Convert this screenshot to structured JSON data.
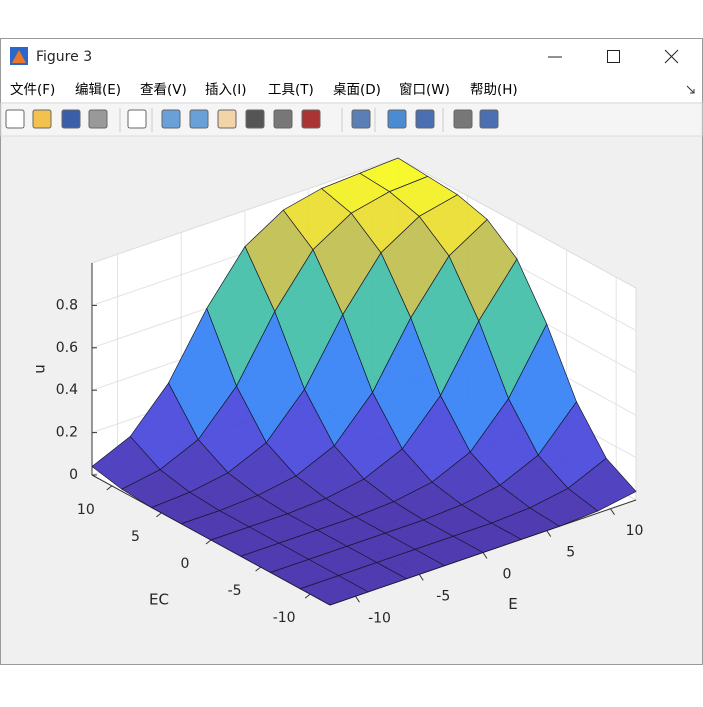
{
  "window": {
    "title": "Figure 3",
    "menu": [
      "文件(F)",
      "编辑(E)",
      "查看(V)",
      "插入(I)",
      "工具(T)",
      "桌面(D)",
      "窗口(W)",
      "帮助(H)"
    ]
  },
  "chart_data": {
    "type": "surface",
    "x_label": "E",
    "y_label": "EC",
    "z_label": "u",
    "x": [
      -12,
      -9,
      -6,
      -3,
      0,
      3,
      6,
      9,
      12
    ],
    "y": [
      -12,
      -9,
      -6,
      -3,
      0,
      3,
      6,
      9,
      12
    ],
    "values": [
      [
        0,
        0,
        0,
        0,
        0,
        0,
        0,
        0.01,
        0.04
      ],
      [
        0,
        0,
        0,
        0,
        0,
        0,
        0.01,
        0.04,
        0.12
      ],
      [
        0,
        0,
        0,
        0,
        0,
        0.01,
        0.04,
        0.12,
        0.31
      ],
      [
        0,
        0,
        0,
        0,
        0.01,
        0.04,
        0.12,
        0.31,
        0.6
      ],
      [
        0,
        0,
        0,
        0.01,
        0.04,
        0.12,
        0.31,
        0.6,
        0.83
      ],
      [
        0,
        0,
        0.01,
        0.04,
        0.12,
        0.31,
        0.6,
        0.83,
        0.94
      ],
      [
        0,
        0.01,
        0.04,
        0.12,
        0.31,
        0.6,
        0.83,
        0.94,
        0.98
      ],
      [
        0.01,
        0.04,
        0.12,
        0.31,
        0.6,
        0.83,
        0.94,
        0.98,
        0.99
      ],
      [
        0.04,
        0.12,
        0.31,
        0.6,
        0.83,
        0.94,
        0.98,
        0.99,
        1
      ]
    ],
    "xlim": [
      -12,
      12
    ],
    "ylim": [
      -12,
      12
    ],
    "zlim": [
      0,
      1
    ],
    "xticks": [
      -10,
      -5,
      0,
      5,
      10
    ],
    "yticks": [
      -10,
      -5,
      0,
      5,
      10
    ],
    "zticks": [
      0,
      0.2,
      0.4,
      0.6,
      0.8
    ],
    "grid": true,
    "colormap": [
      "#3e26a8",
      "#4145e0",
      "#2f7cf6",
      "#1ab3d4",
      "#5fc77a",
      "#d7ba3e",
      "#f9fb15"
    ],
    "edge_color": "#1a1a2e"
  }
}
